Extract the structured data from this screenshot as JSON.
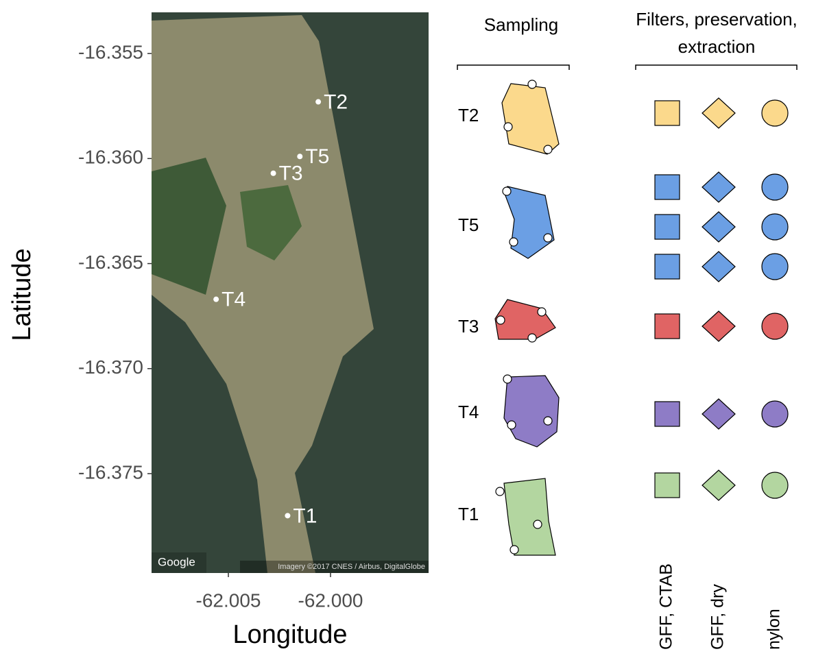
{
  "map": {
    "xlabel": "Longitude",
    "ylabel": "Latitude",
    "xlim": [
      -62.00876,
      -61.9952
    ],
    "ylim": [
      -16.37973,
      -16.35304
    ],
    "xticks": [
      {
        "value": -62.005,
        "label": "-62.005"
      },
      {
        "value": -62,
        "label": "-62.000"
      }
    ],
    "yticks": [
      -16.355,
      {
        "value": -16.36,
        "label": "-16.360"
      },
      -16.365,
      {
        "value": -16.37,
        "label": "-16.370"
      },
      -16.375
    ],
    "sites": [
      {
        "name": "T2",
        "lon": -62.0006,
        "lat": -16.3573
      },
      {
        "name": "T5",
        "lon": -62.0015,
        "lat": -16.3599
      },
      {
        "name": "T3",
        "lon": -62.0028,
        "lat": -16.3607
      },
      {
        "name": "T4",
        "lon": -62.0056,
        "lat": -16.3667
      },
      {
        "name": "T1",
        "lon": -62.0021,
        "lat": -16.377
      }
    ],
    "attribution": "Google",
    "imagery": "Imagery ©2017 CNES / Airbus, DigitalGlobe"
  },
  "sampling": {
    "title": "Sampling",
    "rows": [
      {
        "label": "T2",
        "color": "#fbd98c",
        "replicates": 1
      },
      {
        "label": "T5",
        "color": "#6b9fe4",
        "replicates": 3
      },
      {
        "label": "T3",
        "color": "#e06464",
        "replicates": 1
      },
      {
        "label": "T4",
        "color": "#8e7cc6",
        "replicates": 1
      },
      {
        "label": "T1",
        "color": "#b3d6a0",
        "replicates": 1
      }
    ]
  },
  "filters": {
    "title": [
      "Filters, preservation,",
      "extraction"
    ],
    "columns": [
      "GFF, CTAB",
      "GFF, dry",
      "nylon"
    ]
  }
}
